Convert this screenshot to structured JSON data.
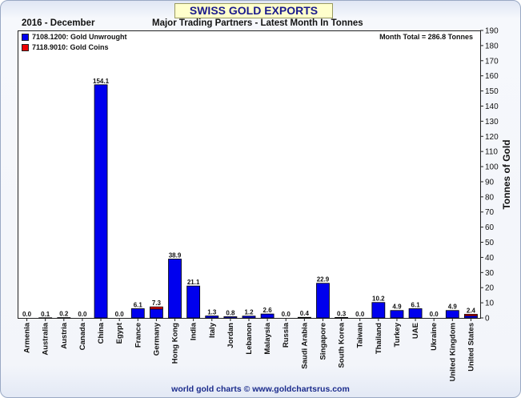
{
  "header": {
    "banner": "SWISS GOLD EXPORTS",
    "period": "2016 - December",
    "subtitle": "Major Trading Partners - Latest Month In Tonnes"
  },
  "legend": {
    "items": [
      {
        "label": "7108.1200: Gold Unwrought",
        "color": "#0000ee"
      },
      {
        "label": "7118.9010: Gold Coins",
        "color": "#ee0000"
      }
    ]
  },
  "month_total": "Month Total = 286.8 Tonnes",
  "footer": "world gold charts © www.goldchartsrus.com",
  "chart_data": {
    "type": "bar",
    "title": "SWISS GOLD EXPORTS",
    "ylabel": "Tonnes of Gold",
    "ylim": [
      0,
      190
    ],
    "ytick_step": 10,
    "stacked": true,
    "categories": [
      "Armenia",
      "Australia",
      "Austria",
      "Canada",
      "China",
      "Egypt",
      "France",
      "Germany",
      "Hong Kong",
      "India",
      "Italy",
      "Jordan",
      "Lebanon",
      "Malaysia",
      "Russia",
      "Saudi Arabia",
      "Singapore",
      "South Korea",
      "Taiwan",
      "Thailand",
      "Turkey",
      "UAE",
      "Ukraine",
      "United Kingdom",
      "United States"
    ],
    "series": [
      {
        "name": "7108.1200: Gold Unwrought",
        "color": "#0000ee",
        "values": [
          0.0,
          0.1,
          0.2,
          0.0,
          154.1,
          0.0,
          6.1,
          5.9,
          38.9,
          21.1,
          1.3,
          0.8,
          1.2,
          2.6,
          0.0,
          0.4,
          22.9,
          0.3,
          0.0,
          10.2,
          4.9,
          6.1,
          0.0,
          4.9,
          1.4
        ]
      },
      {
        "name": "7118.9010: Gold Coins",
        "color": "#ee0000",
        "values": [
          0,
          0,
          0,
          0,
          0,
          0,
          0,
          1.4,
          0,
          0,
          0,
          0,
          0,
          0,
          0,
          0,
          0,
          0,
          0,
          0,
          0,
          0,
          0,
          0,
          1.0
        ]
      }
    ],
    "totals": [
      "0.0",
      "0.1",
      "0.2",
      "0.0",
      "154.1",
      "0.0",
      "6.1",
      "7.3",
      "38.9",
      "21.1",
      "1.3",
      "0.8",
      "1.2",
      "2.6",
      "0.0",
      "0.4",
      "22.9",
      "0.3",
      "0.0",
      "10.2",
      "4.9",
      "6.1",
      "0.0",
      "4.9",
      "2.4"
    ],
    "grid": false,
    "legend_position": "top-left"
  }
}
